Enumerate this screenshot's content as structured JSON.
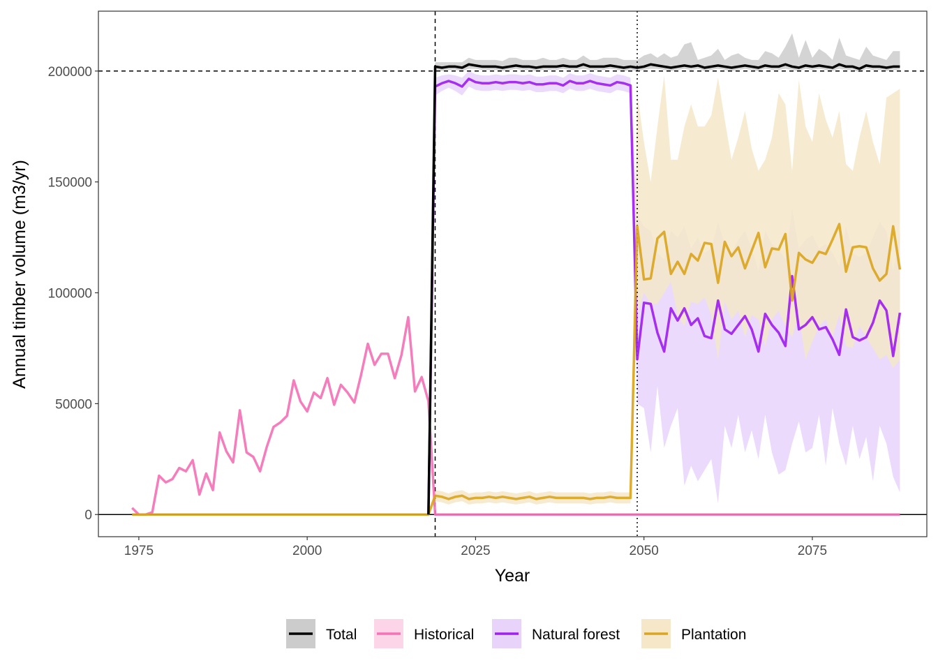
{
  "chart_data": {
    "type": "line",
    "xlabel": "Year",
    "ylabel": "Annual timber volume (m3/yr)",
    "xlim": [
      1969,
      2092
    ],
    "ylim": [
      -10000,
      227000
    ],
    "x_ticks": [
      1975,
      2000,
      2025,
      2050,
      2075
    ],
    "y_ticks": [
      0,
      50000,
      100000,
      150000,
      200000
    ],
    "x_tick_labels": [
      "1975",
      "2000",
      "2025",
      "2050",
      "2075"
    ],
    "y_tick_labels": [
      "0",
      "50000",
      "100000",
      "150000",
      "200000"
    ],
    "grid": false,
    "legend_position": "bottom",
    "reference_lines": [
      {
        "type": "horizontal",
        "value": 200000,
        "style": "dashed"
      },
      {
        "type": "horizontal",
        "value": 0,
        "style": "solid"
      },
      {
        "type": "vertical",
        "value": 2019,
        "style": "dashed"
      },
      {
        "type": "vertical",
        "value": 2049,
        "style": "dotted"
      }
    ],
    "series": [
      {
        "name": "Total",
        "color": "#000000",
        "band_color": "#cccccc",
        "x": [
          2018,
          2019,
          2020,
          2021,
          2022,
          2023,
          2024,
          2025,
          2026,
          2027,
          2028,
          2029,
          2030,
          2031,
          2032,
          2033,
          2034,
          2035,
          2036,
          2037,
          2038,
          2039,
          2040,
          2041,
          2042,
          2043,
          2044,
          2045,
          2046,
          2047,
          2048,
          2049,
          2050,
          2051,
          2052,
          2053,
          2054,
          2055,
          2056,
          2057,
          2058,
          2059,
          2060,
          2061,
          2062,
          2063,
          2064,
          2065,
          2066,
          2067,
          2068,
          2069,
          2070,
          2071,
          2072,
          2073,
          2074,
          2075,
          2076,
          2077,
          2078,
          2079,
          2080,
          2081,
          2082,
          2083,
          2084,
          2085,
          2086,
          2087,
          2088
        ],
        "values": [
          0,
          202000,
          201500,
          202000,
          202000,
          201500,
          203000,
          202500,
          202000,
          202000,
          202000,
          201500,
          202000,
          202500,
          202000,
          202000,
          201500,
          202000,
          202000,
          202000,
          202500,
          202000,
          202000,
          203000,
          202000,
          202000,
          202000,
          202500,
          202000,
          201500,
          202000,
          201500,
          202000,
          203000,
          202500,
          202000,
          201500,
          202000,
          202500,
          202000,
          202500,
          201500,
          202000,
          202500,
          202000,
          201500,
          202000,
          202500,
          202000,
          201500,
          202500,
          202000,
          202000,
          203000,
          202000,
          201500,
          202500,
          202000,
          202500,
          202000,
          201500,
          203000,
          202000,
          202000,
          201000,
          202500,
          202000,
          202000,
          201500,
          202000,
          202000
        ],
        "upper": [
          0,
          204000,
          204000,
          204000,
          204000,
          204000,
          206000,
          205000,
          205000,
          205000,
          205000,
          204500,
          206000,
          206000,
          205000,
          205000,
          205000,
          206000,
          205000,
          205000,
          206000,
          205000,
          205000,
          207000,
          205000,
          205000,
          206000,
          206000,
          206000,
          205000,
          205000,
          205000,
          207000,
          208000,
          206000,
          208000,
          206000,
          207000,
          212000,
          213000,
          205000,
          206000,
          207000,
          210000,
          205000,
          207000,
          208000,
          206000,
          205000,
          205000,
          209000,
          208000,
          206000,
          211000,
          217000,
          206000,
          214000,
          206000,
          210000,
          208000,
          205000,
          215000,
          207000,
          206000,
          205000,
          211000,
          207000,
          206000,
          205000,
          209000,
          209000
        ],
        "lower": [
          0,
          200000,
          200000,
          200500,
          200500,
          200000,
          201000,
          201000,
          200500,
          200500,
          200500,
          200000,
          200500,
          201000,
          200500,
          200500,
          200000,
          200500,
          200500,
          200500,
          201000,
          200500,
          200500,
          201000,
          200500,
          200500,
          200500,
          201000,
          200500,
          200000,
          200500,
          200000,
          200500,
          201000,
          201000,
          200500,
          200000,
          200500,
          201000,
          200500,
          201000,
          200000,
          200500,
          201000,
          200500,
          200000,
          200500,
          201000,
          200500,
          200000,
          201000,
          200500,
          200500,
          201000,
          200500,
          200000,
          201000,
          200500,
          201000,
          200500,
          200000,
          201000,
          200500,
          200500,
          199500,
          201000,
          200500,
          200500,
          200000,
          200500,
          200500
        ]
      },
      {
        "name": "Historical",
        "color": "#f472b6",
        "band_color": "#fcd5e8",
        "x": [
          1974,
          1975,
          1976,
          1977,
          1978,
          1979,
          1980,
          1981,
          1982,
          1983,
          1984,
          1985,
          1986,
          1987,
          1988,
          1989,
          1990,
          1991,
          1992,
          1993,
          1994,
          1995,
          1996,
          1997,
          1998,
          1999,
          2000,
          2001,
          2002,
          2003,
          2004,
          2005,
          2006,
          2007,
          2008,
          2009,
          2010,
          2011,
          2012,
          2013,
          2014,
          2015,
          2016,
          2017,
          2018,
          2019,
          2020,
          2030,
          2040,
          2050,
          2060,
          2070,
          2080,
          2088
        ],
        "values": [
          3000,
          0,
          0,
          1000,
          17500,
          14500,
          16000,
          21000,
          19500,
          24500,
          9000,
          18500,
          11000,
          37000,
          28500,
          23500,
          47000,
          28000,
          26000,
          19500,
          30500,
          39500,
          41500,
          44500,
          60500,
          51000,
          46500,
          55000,
          52500,
          61500,
          49500,
          58500,
          55000,
          50500,
          63000,
          77000,
          67500,
          72500,
          72500,
          61500,
          72000,
          89000,
          55500,
          62000,
          51000,
          0,
          0,
          0,
          0,
          0,
          0,
          0,
          0,
          0
        ]
      },
      {
        "name": "Natural forest",
        "color": "#a020f0",
        "band_color": "#e8d3fb",
        "x": [
          2018,
          2019,
          2020,
          2021,
          2022,
          2023,
          2024,
          2025,
          2026,
          2027,
          2028,
          2029,
          2030,
          2031,
          2032,
          2033,
          2034,
          2035,
          2036,
          2037,
          2038,
          2039,
          2040,
          2041,
          2042,
          2043,
          2044,
          2045,
          2046,
          2047,
          2048,
          2049,
          2050,
          2051,
          2052,
          2053,
          2054,
          2055,
          2056,
          2057,
          2058,
          2059,
          2060,
          2061,
          2062,
          2063,
          2064,
          2065,
          2066,
          2067,
          2068,
          2069,
          2070,
          2071,
          2072,
          2073,
          2074,
          2075,
          2076,
          2077,
          2078,
          2079,
          2080,
          2081,
          2082,
          2083,
          2084,
          2085,
          2086,
          2087,
          2088
        ],
        "values": [
          0,
          193000,
          194500,
          195500,
          194500,
          193000,
          196500,
          195000,
          194500,
          194500,
          195000,
          194500,
          195000,
          195000,
          194500,
          195000,
          194000,
          194000,
          194500,
          194500,
          193500,
          195500,
          194500,
          194500,
          195500,
          194500,
          194000,
          193500,
          195000,
          194500,
          193500,
          70000,
          95500,
          95000,
          82000,
          73500,
          93000,
          87500,
          93000,
          85500,
          88500,
          80500,
          79500,
          96500,
          83500,
          81500,
          85500,
          89500,
          83500,
          73500,
          90500,
          85500,
          82000,
          76000,
          107500,
          83500,
          85500,
          89000,
          83500,
          84500,
          79000,
          72000,
          92500,
          80000,
          78500,
          80000,
          86500,
          96500,
          92000,
          71500,
          91000
        ],
        "upper": [
          0,
          197000,
          198000,
          198500,
          198000,
          197000,
          200000,
          198500,
          198000,
          198000,
          198500,
          198000,
          198500,
          198500,
          198000,
          198500,
          197500,
          197500,
          198000,
          198000,
          197000,
          199000,
          198000,
          198000,
          199000,
          198000,
          197500,
          197000,
          198500,
          198000,
          197000,
          135000,
          130000,
          128000,
          118000,
          115000,
          128000,
          125000,
          130000,
          120000,
          125000,
          118000,
          120000,
          132000,
          122000,
          118000,
          124000,
          128000,
          120000,
          110000,
          128000,
          122000,
          120000,
          115000,
          138000,
          120000,
          124000,
          126000,
          120000,
          122000,
          118000,
          112000,
          130000,
          118000,
          116000,
          118000,
          125000,
          132000,
          128000,
          110000,
          128000
        ],
        "lower": [
          0,
          189000,
          191000,
          192500,
          191000,
          189000,
          193000,
          191500,
          191000,
          191000,
          191500,
          191000,
          191500,
          191500,
          191000,
          191500,
          190500,
          190500,
          191000,
          191000,
          190000,
          192000,
          191000,
          191000,
          192000,
          191000,
          190500,
          190000,
          191500,
          191000,
          190000,
          50000,
          48000,
          28000,
          58000,
          30000,
          40000,
          48000,
          13000,
          22000,
          15000,
          20000,
          25000,
          5000,
          40000,
          30000,
          45000,
          28000,
          38000,
          25000,
          45000,
          28000,
          18000,
          20000,
          32000,
          42000,
          28000,
          30000,
          45000,
          22000,
          48000,
          32000,
          22000,
          40000,
          25000,
          35000,
          15000,
          40000,
          32000,
          17000,
          10000
        ]
      },
      {
        "name": "Plantation",
        "color": "#daa520",
        "band_color": "#f5e7c8",
        "x": [
          1974,
          2000,
          2018,
          2019,
          2020,
          2021,
          2022,
          2023,
          2024,
          2025,
          2026,
          2027,
          2028,
          2029,
          2030,
          2031,
          2032,
          2033,
          2034,
          2035,
          2036,
          2037,
          2038,
          2039,
          2040,
          2041,
          2042,
          2043,
          2044,
          2045,
          2046,
          2047,
          2048,
          2049,
          2050,
          2051,
          2052,
          2053,
          2054,
          2055,
          2056,
          2057,
          2058,
          2059,
          2060,
          2061,
          2062,
          2063,
          2064,
          2065,
          2066,
          2067,
          2068,
          2069,
          2070,
          2071,
          2072,
          2073,
          2074,
          2075,
          2076,
          2077,
          2078,
          2079,
          2080,
          2081,
          2082,
          2083,
          2084,
          2085,
          2086,
          2087,
          2088
        ],
        "values": [
          0,
          0,
          0,
          8500,
          8000,
          7000,
          8000,
          8500,
          7000,
          7500,
          7500,
          8000,
          7500,
          8000,
          7500,
          7000,
          7500,
          8000,
          7000,
          7500,
          8000,
          7500,
          7500,
          7500,
          7500,
          7500,
          7000,
          7500,
          7500,
          8000,
          7500,
          7500,
          7500,
          130000,
          106000,
          106500,
          124500,
          127500,
          108500,
          114000,
          108500,
          117500,
          114500,
          122500,
          122000,
          104500,
          123000,
          116500,
          120500,
          111000,
          119000,
          127000,
          111500,
          120000,
          119500,
          126500,
          96500,
          118000,
          115000,
          113500,
          118500,
          117500,
          124000,
          131000,
          109500,
          120500,
          121000,
          120500,
          111000,
          105500,
          108500,
          130000,
          110500
        ],
        "upper": [
          0,
          0,
          0,
          11000,
          10500,
          9500,
          10500,
          11000,
          9500,
          10000,
          10000,
          10500,
          10000,
          10500,
          10000,
          9500,
          10000,
          10500,
          9500,
          10000,
          10500,
          10000,
          10000,
          10000,
          10000,
          10000,
          9500,
          10000,
          10000,
          10500,
          10000,
          10000,
          10000,
          190000,
          168000,
          150000,
          175000,
          198000,
          160000,
          160000,
          175000,
          185000,
          175000,
          175000,
          180000,
          197000,
          178000,
          160000,
          170000,
          182000,
          165000,
          155000,
          160000,
          170000,
          190000,
          185000,
          155000,
          196000,
          175000,
          168000,
          190000,
          178000,
          170000,
          182000,
          158000,
          155000,
          170000,
          182000,
          168000,
          158000,
          188000,
          190000,
          192000
        ],
        "lower": [
          0,
          0,
          0,
          6000,
          5500,
          4500,
          5500,
          6000,
          4500,
          5000,
          5000,
          5500,
          5000,
          5500,
          5000,
          4500,
          5000,
          5500,
          4500,
          5000,
          5500,
          5000,
          5000,
          5000,
          5000,
          5000,
          4500,
          5000,
          5000,
          5500,
          5000,
          5000,
          5000,
          90000,
          100000,
          95000,
          95000,
          100000,
          105000,
          90000,
          85000,
          96000,
          95000,
          98000,
          90000,
          70000,
          96000,
          88000,
          92000,
          80000,
          90000,
          88000,
          76000,
          88000,
          92000,
          85000,
          80000,
          90000,
          70000,
          78000,
          85000,
          88000,
          80000,
          90000,
          76000,
          75000,
          85000,
          80000,
          75000,
          70000,
          72000,
          66000,
          70000
        ]
      }
    ]
  }
}
